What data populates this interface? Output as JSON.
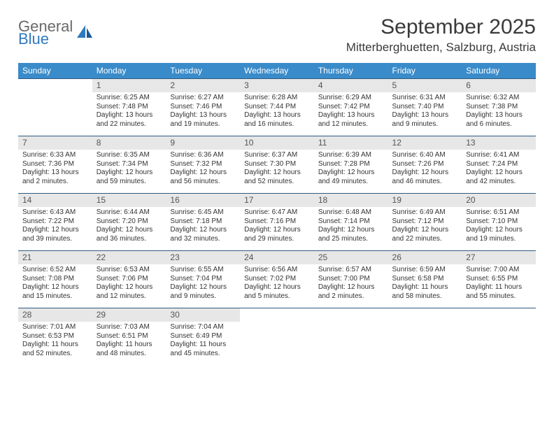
{
  "logo": {
    "line1": "General",
    "line2": "Blue"
  },
  "title": "September 2025",
  "location": "Mitterberghuetten, Salzburg, Austria",
  "colors": {
    "header_bg": "#3a8bc9",
    "header_fg": "#ffffff",
    "daynum_bg": "#e7e7e7",
    "rule": "#2f5a80",
    "logo_gray": "#6a6a6a",
    "logo_blue": "#2f7abf"
  },
  "day_headers": [
    "Sunday",
    "Monday",
    "Tuesday",
    "Wednesday",
    "Thursday",
    "Friday",
    "Saturday"
  ],
  "weeks": [
    [
      null,
      {
        "n": "1",
        "sr": "6:25 AM",
        "ss": "7:48 PM",
        "dl": "13 hours and 22 minutes."
      },
      {
        "n": "2",
        "sr": "6:27 AM",
        "ss": "7:46 PM",
        "dl": "13 hours and 19 minutes."
      },
      {
        "n": "3",
        "sr": "6:28 AM",
        "ss": "7:44 PM",
        "dl": "13 hours and 16 minutes."
      },
      {
        "n": "4",
        "sr": "6:29 AM",
        "ss": "7:42 PM",
        "dl": "13 hours and 12 minutes."
      },
      {
        "n": "5",
        "sr": "6:31 AM",
        "ss": "7:40 PM",
        "dl": "13 hours and 9 minutes."
      },
      {
        "n": "6",
        "sr": "6:32 AM",
        "ss": "7:38 PM",
        "dl": "13 hours and 6 minutes."
      }
    ],
    [
      {
        "n": "7",
        "sr": "6:33 AM",
        "ss": "7:36 PM",
        "dl": "13 hours and 2 minutes."
      },
      {
        "n": "8",
        "sr": "6:35 AM",
        "ss": "7:34 PM",
        "dl": "12 hours and 59 minutes."
      },
      {
        "n": "9",
        "sr": "6:36 AM",
        "ss": "7:32 PM",
        "dl": "12 hours and 56 minutes."
      },
      {
        "n": "10",
        "sr": "6:37 AM",
        "ss": "7:30 PM",
        "dl": "12 hours and 52 minutes."
      },
      {
        "n": "11",
        "sr": "6:39 AM",
        "ss": "7:28 PM",
        "dl": "12 hours and 49 minutes."
      },
      {
        "n": "12",
        "sr": "6:40 AM",
        "ss": "7:26 PM",
        "dl": "12 hours and 46 minutes."
      },
      {
        "n": "13",
        "sr": "6:41 AM",
        "ss": "7:24 PM",
        "dl": "12 hours and 42 minutes."
      }
    ],
    [
      {
        "n": "14",
        "sr": "6:43 AM",
        "ss": "7:22 PM",
        "dl": "12 hours and 39 minutes."
      },
      {
        "n": "15",
        "sr": "6:44 AM",
        "ss": "7:20 PM",
        "dl": "12 hours and 36 minutes."
      },
      {
        "n": "16",
        "sr": "6:45 AM",
        "ss": "7:18 PM",
        "dl": "12 hours and 32 minutes."
      },
      {
        "n": "17",
        "sr": "6:47 AM",
        "ss": "7:16 PM",
        "dl": "12 hours and 29 minutes."
      },
      {
        "n": "18",
        "sr": "6:48 AM",
        "ss": "7:14 PM",
        "dl": "12 hours and 25 minutes."
      },
      {
        "n": "19",
        "sr": "6:49 AM",
        "ss": "7:12 PM",
        "dl": "12 hours and 22 minutes."
      },
      {
        "n": "20",
        "sr": "6:51 AM",
        "ss": "7:10 PM",
        "dl": "12 hours and 19 minutes."
      }
    ],
    [
      {
        "n": "21",
        "sr": "6:52 AM",
        "ss": "7:08 PM",
        "dl": "12 hours and 15 minutes."
      },
      {
        "n": "22",
        "sr": "6:53 AM",
        "ss": "7:06 PM",
        "dl": "12 hours and 12 minutes."
      },
      {
        "n": "23",
        "sr": "6:55 AM",
        "ss": "7:04 PM",
        "dl": "12 hours and 9 minutes."
      },
      {
        "n": "24",
        "sr": "6:56 AM",
        "ss": "7:02 PM",
        "dl": "12 hours and 5 minutes."
      },
      {
        "n": "25",
        "sr": "6:57 AM",
        "ss": "7:00 PM",
        "dl": "12 hours and 2 minutes."
      },
      {
        "n": "26",
        "sr": "6:59 AM",
        "ss": "6:58 PM",
        "dl": "11 hours and 58 minutes."
      },
      {
        "n": "27",
        "sr": "7:00 AM",
        "ss": "6:55 PM",
        "dl": "11 hours and 55 minutes."
      }
    ],
    [
      {
        "n": "28",
        "sr": "7:01 AM",
        "ss": "6:53 PM",
        "dl": "11 hours and 52 minutes."
      },
      {
        "n": "29",
        "sr": "7:03 AM",
        "ss": "6:51 PM",
        "dl": "11 hours and 48 minutes."
      },
      {
        "n": "30",
        "sr": "7:04 AM",
        "ss": "6:49 PM",
        "dl": "11 hours and 45 minutes."
      },
      null,
      null,
      null,
      null
    ]
  ],
  "labels": {
    "sunrise": "Sunrise:",
    "sunset": "Sunset:",
    "daylight": "Daylight:"
  }
}
